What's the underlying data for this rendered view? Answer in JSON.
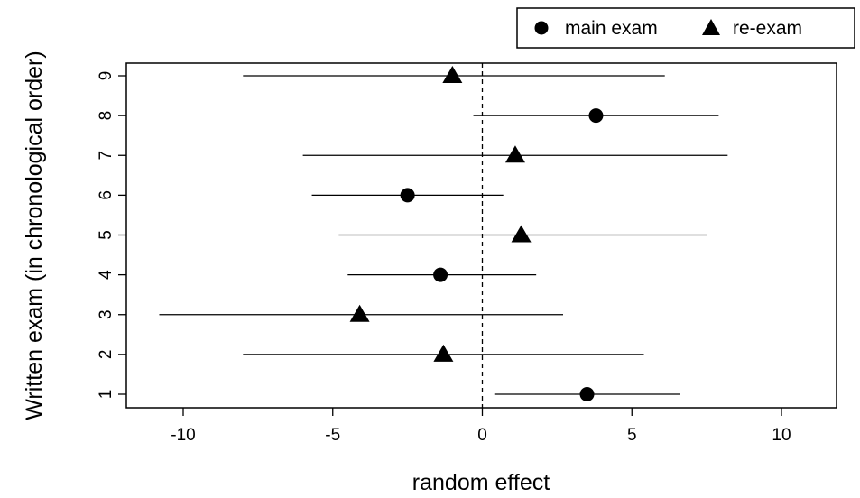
{
  "chart_data": {
    "type": "scatter",
    "title": "",
    "xlabel": "random effect",
    "ylabel": "Written exam (in chronological order)",
    "xlim": [
      -12,
      12
    ],
    "ylim": [
      0.6,
      9.3
    ],
    "x_ticks": [
      -10,
      -5,
      0,
      5,
      10
    ],
    "x_tick_labels": [
      "-10",
      "-5",
      "0",
      "5",
      "10"
    ],
    "y_ticks": [
      1,
      2,
      3,
      4,
      5,
      6,
      7,
      8,
      9
    ],
    "y_tick_labels": [
      "1",
      "2",
      "3",
      "4",
      "5",
      "6",
      "7",
      "8",
      "9"
    ],
    "reference_line": {
      "x": 0,
      "style": "dashed"
    },
    "grid": false,
    "legend": {
      "placement": "top-right-outside",
      "entries": [
        {
          "label": "main exam",
          "marker": "circle"
        },
        {
          "label": "re-exam",
          "marker": "triangle"
        }
      ]
    },
    "points": [
      {
        "exam": 1,
        "type": "main exam",
        "estimate": 3.5,
        "lower": 0.4,
        "upper": 6.6
      },
      {
        "exam": 2,
        "type": "re-exam",
        "estimate": -1.3,
        "lower": -8.0,
        "upper": 5.4
      },
      {
        "exam": 3,
        "type": "re-exam",
        "estimate": -4.1,
        "lower": -10.8,
        "upper": 2.7
      },
      {
        "exam": 4,
        "type": "main exam",
        "estimate": -1.4,
        "lower": -4.5,
        "upper": 1.8
      },
      {
        "exam": 5,
        "type": "re-exam",
        "estimate": 1.3,
        "lower": -4.8,
        "upper": 7.5
      },
      {
        "exam": 6,
        "type": "main exam",
        "estimate": -2.5,
        "lower": -5.7,
        "upper": 0.7
      },
      {
        "exam": 7,
        "type": "re-exam",
        "estimate": 1.1,
        "lower": -6.0,
        "upper": 8.2
      },
      {
        "exam": 8,
        "type": "main exam",
        "estimate": 3.8,
        "lower": -0.3,
        "upper": 7.9
      },
      {
        "exam": 9,
        "type": "re-exam",
        "estimate": -1.0,
        "lower": -8.0,
        "upper": 6.1
      }
    ]
  }
}
